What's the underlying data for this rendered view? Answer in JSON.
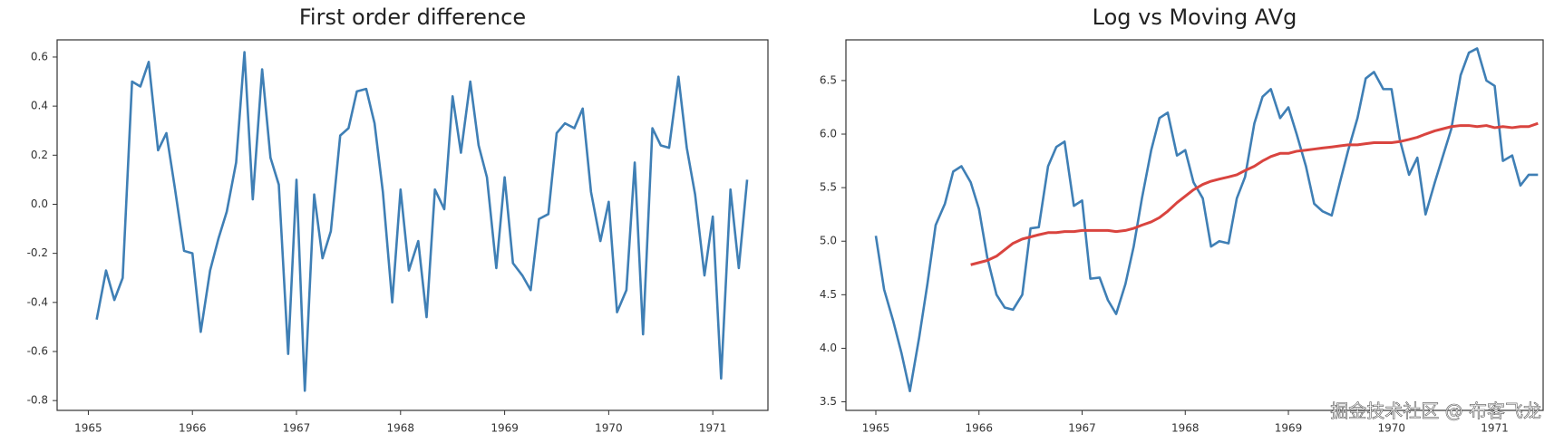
{
  "chart_data": [
    {
      "type": "line",
      "title": "First order difference",
      "x": [
        1965.08,
        1965.17,
        1965.25,
        1965.33,
        1965.42,
        1965.5,
        1965.58,
        1965.67,
        1965.75,
        1965.83,
        1965.92,
        1966,
        1966.08,
        1966.17,
        1966.25,
        1966.33,
        1966.42,
        1966.5,
        1966.58,
        1966.67,
        1966.75,
        1966.83,
        1966.92,
        1967,
        1967.08,
        1967.17,
        1967.25,
        1967.33,
        1967.42,
        1967.5,
        1967.58,
        1967.67,
        1967.75,
        1967.83,
        1967.92,
        1968,
        1968.08,
        1968.17,
        1968.25,
        1968.33,
        1968.42,
        1968.5,
        1968.58,
        1968.67,
        1968.75,
        1968.83,
        1968.92,
        1969,
        1969.08,
        1969.17,
        1969.25,
        1969.33,
        1969.42,
        1969.5,
        1969.58,
        1969.67,
        1969.75,
        1969.83,
        1969.92,
        1970,
        1970.08,
        1970.17,
        1970.25,
        1970.33,
        1970.42,
        1970.5,
        1970.58,
        1970.67,
        1970.75,
        1970.83,
        1970.92,
        1971,
        1971.08,
        1971.17,
        1971.25,
        1971.33
      ],
      "series": [
        {
          "color": "#3f7fb5",
          "values": [
            -0.47,
            -0.27,
            -0.39,
            -0.3,
            0.5,
            0.48,
            0.58,
            0.22,
            0.29,
            0.07,
            -0.19,
            -0.2,
            -0.52,
            -0.27,
            -0.14,
            -0.03,
            0.17,
            0.62,
            0.02,
            0.55,
            0.19,
            0.08,
            -0.61,
            0.1,
            -0.76,
            0.04,
            -0.22,
            -0.11,
            0.28,
            0.31,
            0.46,
            0.47,
            0.33,
            0.05,
            -0.4,
            0.06,
            -0.27,
            -0.15,
            -0.46,
            0.06,
            -0.02,
            0.44,
            0.21,
            0.5,
            0.24,
            0.11,
            -0.26,
            0.11,
            -0.24,
            -0.29,
            -0.35,
            -0.06,
            -0.04,
            0.29,
            0.33,
            0.31,
            0.39,
            0.05,
            -0.15,
            0.01,
            -0.44,
            -0.35,
            0.17,
            -0.53,
            0.31,
            0.24,
            0.23,
            0.52,
            0.23,
            0.04,
            -0.29,
            -0.05,
            -0.71,
            0.06,
            -0.26,
            0.1
          ]
        }
      ],
      "xlim": [
        1964.7,
        1971.53
      ],
      "xticks": [
        1965,
        1966,
        1967,
        1968,
        1969,
        1970,
        1971
      ],
      "ylim": [
        -0.84,
        0.67
      ],
      "yticks": [
        -0.8,
        -0.6,
        -0.4,
        -0.2,
        {
          "value": 0,
          "label": "0.0"
        },
        0.2,
        0.4,
        0.6
      ]
    },
    {
      "type": "line",
      "title": "Log vs Moving AVg",
      "x": [
        1965,
        1965.08,
        1965.17,
        1965.25,
        1965.33,
        1965.42,
        1965.5,
        1965.58,
        1965.67,
        1965.75,
        1965.83,
        1965.92,
        1966,
        1966.08,
        1966.17,
        1966.25,
        1966.33,
        1966.42,
        1966.5,
        1966.58,
        1966.67,
        1966.75,
        1966.83,
        1966.92,
        1967,
        1967.08,
        1967.17,
        1967.25,
        1967.33,
        1967.42,
        1967.5,
        1967.58,
        1967.67,
        1967.75,
        1967.83,
        1967.92,
        1968,
        1968.08,
        1968.17,
        1968.25,
        1968.33,
        1968.42,
        1968.5,
        1968.58,
        1968.67,
        1968.75,
        1968.83,
        1968.92,
        1969,
        1969.08,
        1969.17,
        1969.25,
        1969.33,
        1969.42,
        1969.5,
        1969.58,
        1969.67,
        1969.75,
        1969.83,
        1969.92,
        1970,
        1970.08,
        1970.17,
        1970.25,
        1970.33,
        1970.42,
        1970.5,
        1970.58,
        1970.67,
        1970.75,
        1970.83,
        1970.92,
        1971,
        1971.08,
        1971.17,
        1971.25,
        1971.33,
        1971.42
      ],
      "series": [
        {
          "color": "#3f7fb5",
          "values": [
            5.05,
            4.55,
            4.25,
            3.95,
            3.6,
            4.1,
            4.6,
            5.15,
            5.35,
            5.65,
            5.7,
            5.55,
            5.3,
            4.85,
            4.5,
            4.38,
            4.36,
            4.5,
            5.12,
            5.13,
            5.7,
            5.88,
            5.93,
            5.33,
            5.38,
            4.65,
            4.66,
            4.45,
            4.32,
            4.6,
            4.95,
            5.4,
            5.85,
            6.15,
            6.2,
            5.8,
            5.85,
            5.55,
            5.4,
            4.95,
            5.0,
            4.98,
            5.4,
            5.6,
            6.1,
            6.35,
            6.42,
            6.15,
            6.25,
            6.0,
            5.7,
            5.35,
            5.28,
            5.24,
            5.55,
            5.85,
            6.15,
            6.52,
            6.58,
            6.42,
            6.42,
            5.95,
            5.62,
            5.78,
            5.25,
            5.55,
            5.8,
            6.05,
            6.55,
            6.76,
            6.8,
            6.5,
            6.45,
            5.75,
            5.8,
            5.52,
            5.62,
            5.62
          ]
        },
        {
          "color": "#d9443f",
          "values": [
            null,
            null,
            null,
            null,
            null,
            null,
            null,
            null,
            null,
            null,
            null,
            4.78,
            4.8,
            4.82,
            4.86,
            4.92,
            4.98,
            5.02,
            5.04,
            5.06,
            5.08,
            5.08,
            5.09,
            5.09,
            5.1,
            5.1,
            5.1,
            5.1,
            5.09,
            5.1,
            5.12,
            5.15,
            5.18,
            5.22,
            5.28,
            5.36,
            5.42,
            5.48,
            5.53,
            5.56,
            5.58,
            5.6,
            5.62,
            5.66,
            5.7,
            5.75,
            5.79,
            5.82,
            5.82,
            5.84,
            5.85,
            5.86,
            5.87,
            5.88,
            5.89,
            5.9,
            5.9,
            5.91,
            5.92,
            5.92,
            5.92,
            5.93,
            5.95,
            5.97,
            6.0,
            6.03,
            6.05,
            6.07,
            6.08,
            6.08,
            6.07,
            6.08,
            6.06,
            6.07,
            6.06,
            6.07,
            6.07,
            6.1
          ]
        }
      ],
      "xlim": [
        1964.71,
        1971.47
      ],
      "xticks": [
        1965,
        1966,
        1967,
        1968,
        1969,
        1970,
        1971
      ],
      "ylim": [
        3.42,
        6.88
      ],
      "yticks": [
        3.5,
        {
          "value": 4,
          "label": "4.0"
        },
        4.5,
        {
          "value": 5,
          "label": "5.0"
        },
        5.5,
        {
          "value": 6,
          "label": "6.0"
        },
        6.5
      ],
      "watermark": "掘金技术社区 @ 布客飞龙"
    }
  ]
}
